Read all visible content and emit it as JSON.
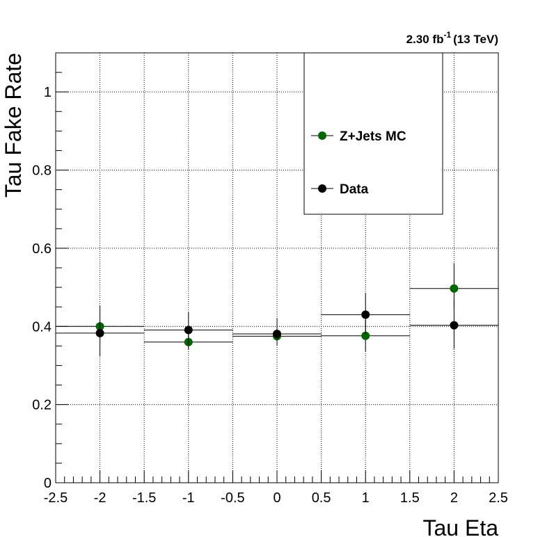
{
  "chart_data": {
    "type": "scatter",
    "title": "",
    "xlabel": "Tau Eta",
    "ylabel": "Tau Fake Rate",
    "xlim": [
      -2.5,
      2.5
    ],
    "ylim": [
      0,
      1.1
    ],
    "x_ticks": [
      "-2.5",
      "-2",
      "-1.5",
      "-1",
      "-0.5",
      "0",
      "0.5",
      "1",
      "1.5",
      "2",
      "2.5"
    ],
    "y_ticks": [
      "0",
      "0.2",
      "0.4",
      "0.6",
      "0.8",
      "1"
    ],
    "grid": true,
    "legend_position": "top-right",
    "luminosity": {
      "value": "2.30 fb",
      "sup": "-1",
      "energy": "(13 TeV)"
    },
    "series": [
      {
        "name": "Z+Jets MC",
        "color": "#006600",
        "bins": [
          {
            "x": -2,
            "xlow": -2.5,
            "xhigh": -1.5,
            "y": 0.4,
            "yerr_low": 0.01,
            "yerr_high": 0.01
          },
          {
            "x": -1,
            "xlow": -1.5,
            "xhigh": -0.5,
            "y": 0.36,
            "yerr_low": 0.02,
            "yerr_high": 0.02
          },
          {
            "x": 0,
            "xlow": -0.5,
            "xhigh": 0.5,
            "y": 0.375,
            "yerr_low": 0.02,
            "yerr_high": 0.02
          },
          {
            "x": 1,
            "xlow": 0.5,
            "xhigh": 1.5,
            "y": 0.376,
            "yerr_low": 0.04,
            "yerr_high": 0.04
          },
          {
            "x": 2,
            "xlow": 1.5,
            "xhigh": 2.5,
            "y": 0.497,
            "yerr_low": 0.05,
            "yerr_high": 0.065
          }
        ]
      },
      {
        "name": "Data",
        "color": "#000000",
        "bins": [
          {
            "x": -2,
            "xlow": -2.5,
            "xhigh": -1.5,
            "y": 0.383,
            "yerr_low": 0.06,
            "yerr_high": 0.07
          },
          {
            "x": -1,
            "xlow": -1.5,
            "xhigh": -0.5,
            "y": 0.391,
            "yerr_low": 0.04,
            "yerr_high": 0.045
          },
          {
            "x": 0,
            "xlow": -0.5,
            "xhigh": 0.5,
            "y": 0.381,
            "yerr_low": 0.03,
            "yerr_high": 0.04
          },
          {
            "x": 1,
            "xlow": 0.5,
            "xhigh": 1.5,
            "y": 0.43,
            "yerr_low": 0.05,
            "yerr_high": 0.055
          },
          {
            "x": 2,
            "xlow": 1.5,
            "xhigh": 2.5,
            "y": 0.403,
            "yerr_low": 0.06,
            "yerr_high": 0.065
          }
        ]
      }
    ]
  }
}
